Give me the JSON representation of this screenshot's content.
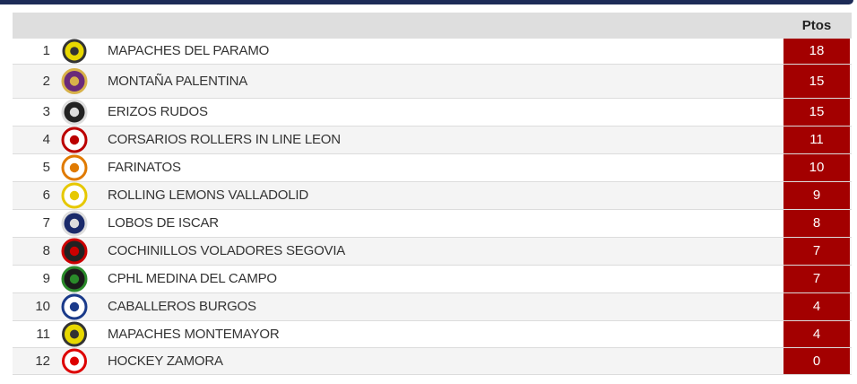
{
  "header": {
    "points": "Ptos"
  },
  "table": {
    "rows": [
      {
        "rank": 1,
        "team": "MAPACHES DEL PARAMO",
        "points": 18
      },
      {
        "rank": 2,
        "team": "MONTAÑA PALENTINA",
        "points": 15
      },
      {
        "rank": 3,
        "team": "ERIZOS RUDOS",
        "points": 15
      },
      {
        "rank": 4,
        "team": "CORSARIOS ROLLERS IN LINE LEON",
        "points": 11
      },
      {
        "rank": 5,
        "team": "FARINATOS",
        "points": 10
      },
      {
        "rank": 6,
        "team": "ROLLING LEMONS VALLADOLID",
        "points": 9
      },
      {
        "rank": 7,
        "team": "LOBOS DE ISCAR",
        "points": 8
      },
      {
        "rank": 8,
        "team": "COCHINILLOS VOLADORES SEGOVIA",
        "points": 7
      },
      {
        "rank": 9,
        "team": "CPHL MEDINA DEL CAMPO",
        "points": 7
      },
      {
        "rank": 10,
        "team": "CABALLEROS BURGOS",
        "points": 4
      },
      {
        "rank": 11,
        "team": "MAPACHES MONTEMAYOR",
        "points": 4
      },
      {
        "rank": 12,
        "team": "HOCKEY ZAMORA",
        "points": 0
      }
    ]
  }
}
